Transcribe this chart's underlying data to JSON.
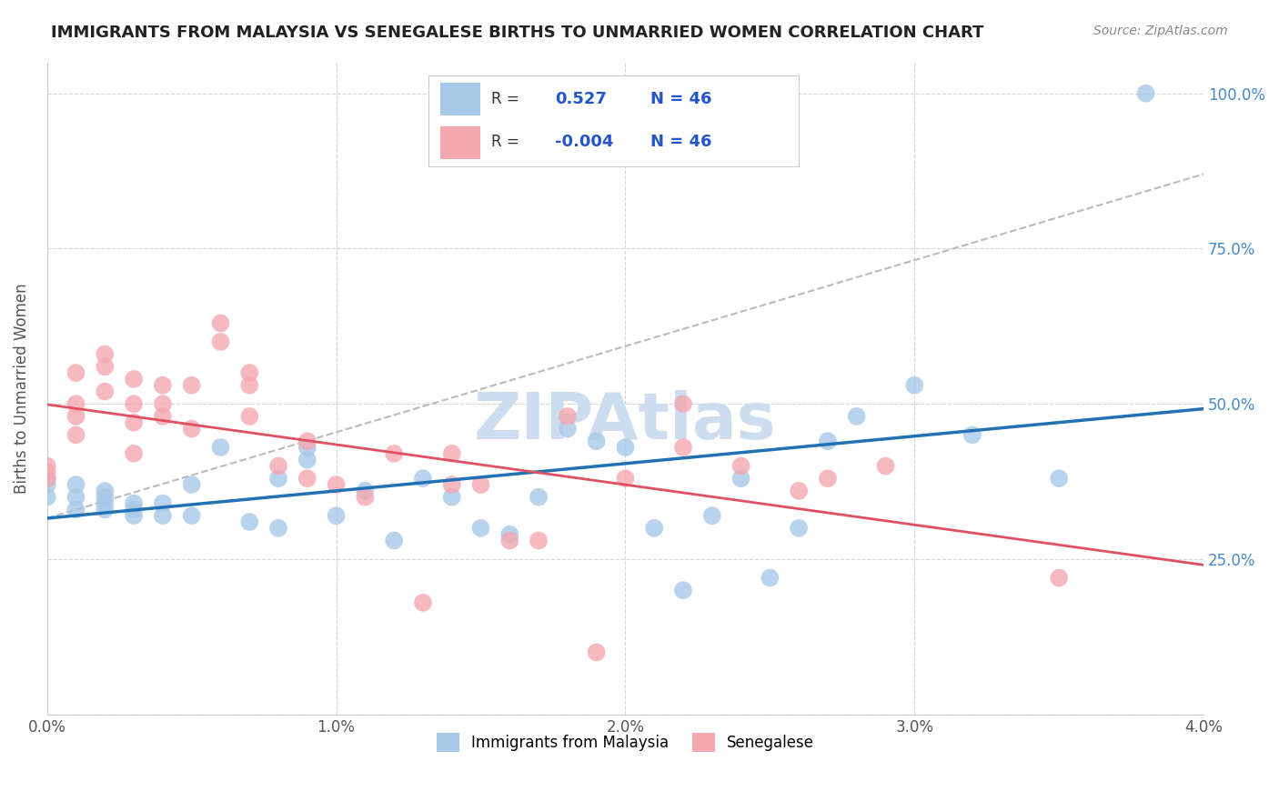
{
  "title": "IMMIGRANTS FROM MALAYSIA VS SENEGALESE BIRTHS TO UNMARRIED WOMEN CORRELATION CHART",
  "source": "Source: ZipAtlas.com",
  "ylabel": "Births to Unmarried Women",
  "y_ticks_right": [
    "100.0%",
    "75.0%",
    "50.0%",
    "25.0%"
  ],
  "y_ticks_right_vals": [
    1.0,
    0.75,
    0.5,
    0.25
  ],
  "legend_label1": "Immigrants from Malaysia",
  "legend_label2": "Senegalese",
  "R1": 0.527,
  "R2": -0.004,
  "N1": 46,
  "N2": 46,
  "blue_color": "#a8c8e8",
  "pink_color": "#f4a8b0",
  "blue_line_color": "#2171b5",
  "pink_line_color": "#e05060",
  "dashed_line_color": "#bbbbbb",
  "background_color": "#ffffff",
  "grid_color": "#cccccc",
  "watermark_color": "#ccddf0",
  "blue_scatter_x": [
    0.0,
    0.0,
    0.0,
    0.001,
    0.001,
    0.001,
    0.002,
    0.002,
    0.002,
    0.002,
    0.003,
    0.003,
    0.003,
    0.004,
    0.004,
    0.005,
    0.005,
    0.006,
    0.007,
    0.008,
    0.008,
    0.009,
    0.009,
    0.01,
    0.011,
    0.012,
    0.013,
    0.014,
    0.015,
    0.016,
    0.017,
    0.018,
    0.019,
    0.02,
    0.021,
    0.022,
    0.023,
    0.024,
    0.025,
    0.026,
    0.027,
    0.028,
    0.03,
    0.032,
    0.035,
    0.038
  ],
  "blue_scatter_y": [
    0.38,
    0.37,
    0.35,
    0.37,
    0.35,
    0.33,
    0.36,
    0.35,
    0.34,
    0.33,
    0.34,
    0.33,
    0.32,
    0.34,
    0.32,
    0.37,
    0.32,
    0.43,
    0.31,
    0.38,
    0.3,
    0.43,
    0.41,
    0.32,
    0.36,
    0.28,
    0.38,
    0.35,
    0.3,
    0.29,
    0.35,
    0.46,
    0.44,
    0.43,
    0.3,
    0.2,
    0.32,
    0.38,
    0.22,
    0.3,
    0.44,
    0.48,
    0.53,
    0.45,
    0.38,
    1.0
  ],
  "pink_scatter_x": [
    0.0,
    0.0,
    0.0,
    0.001,
    0.001,
    0.001,
    0.001,
    0.002,
    0.002,
    0.002,
    0.003,
    0.003,
    0.003,
    0.003,
    0.004,
    0.004,
    0.004,
    0.005,
    0.005,
    0.006,
    0.006,
    0.007,
    0.007,
    0.007,
    0.008,
    0.009,
    0.009,
    0.01,
    0.011,
    0.012,
    0.013,
    0.014,
    0.014,
    0.015,
    0.016,
    0.017,
    0.018,
    0.019,
    0.02,
    0.022,
    0.022,
    0.024,
    0.026,
    0.027,
    0.029,
    0.035
  ],
  "pink_scatter_y": [
    0.4,
    0.39,
    0.38,
    0.55,
    0.5,
    0.48,
    0.45,
    0.58,
    0.56,
    0.52,
    0.54,
    0.5,
    0.47,
    0.42,
    0.53,
    0.5,
    0.48,
    0.53,
    0.46,
    0.6,
    0.63,
    0.55,
    0.53,
    0.48,
    0.4,
    0.44,
    0.38,
    0.37,
    0.35,
    0.42,
    0.18,
    0.42,
    0.37,
    0.37,
    0.28,
    0.28,
    0.48,
    0.1,
    0.38,
    0.5,
    0.43,
    0.4,
    0.36,
    0.38,
    0.4,
    0.22
  ],
  "xlim": [
    0.0,
    0.04
  ],
  "ylim": [
    0.0,
    1.05
  ]
}
